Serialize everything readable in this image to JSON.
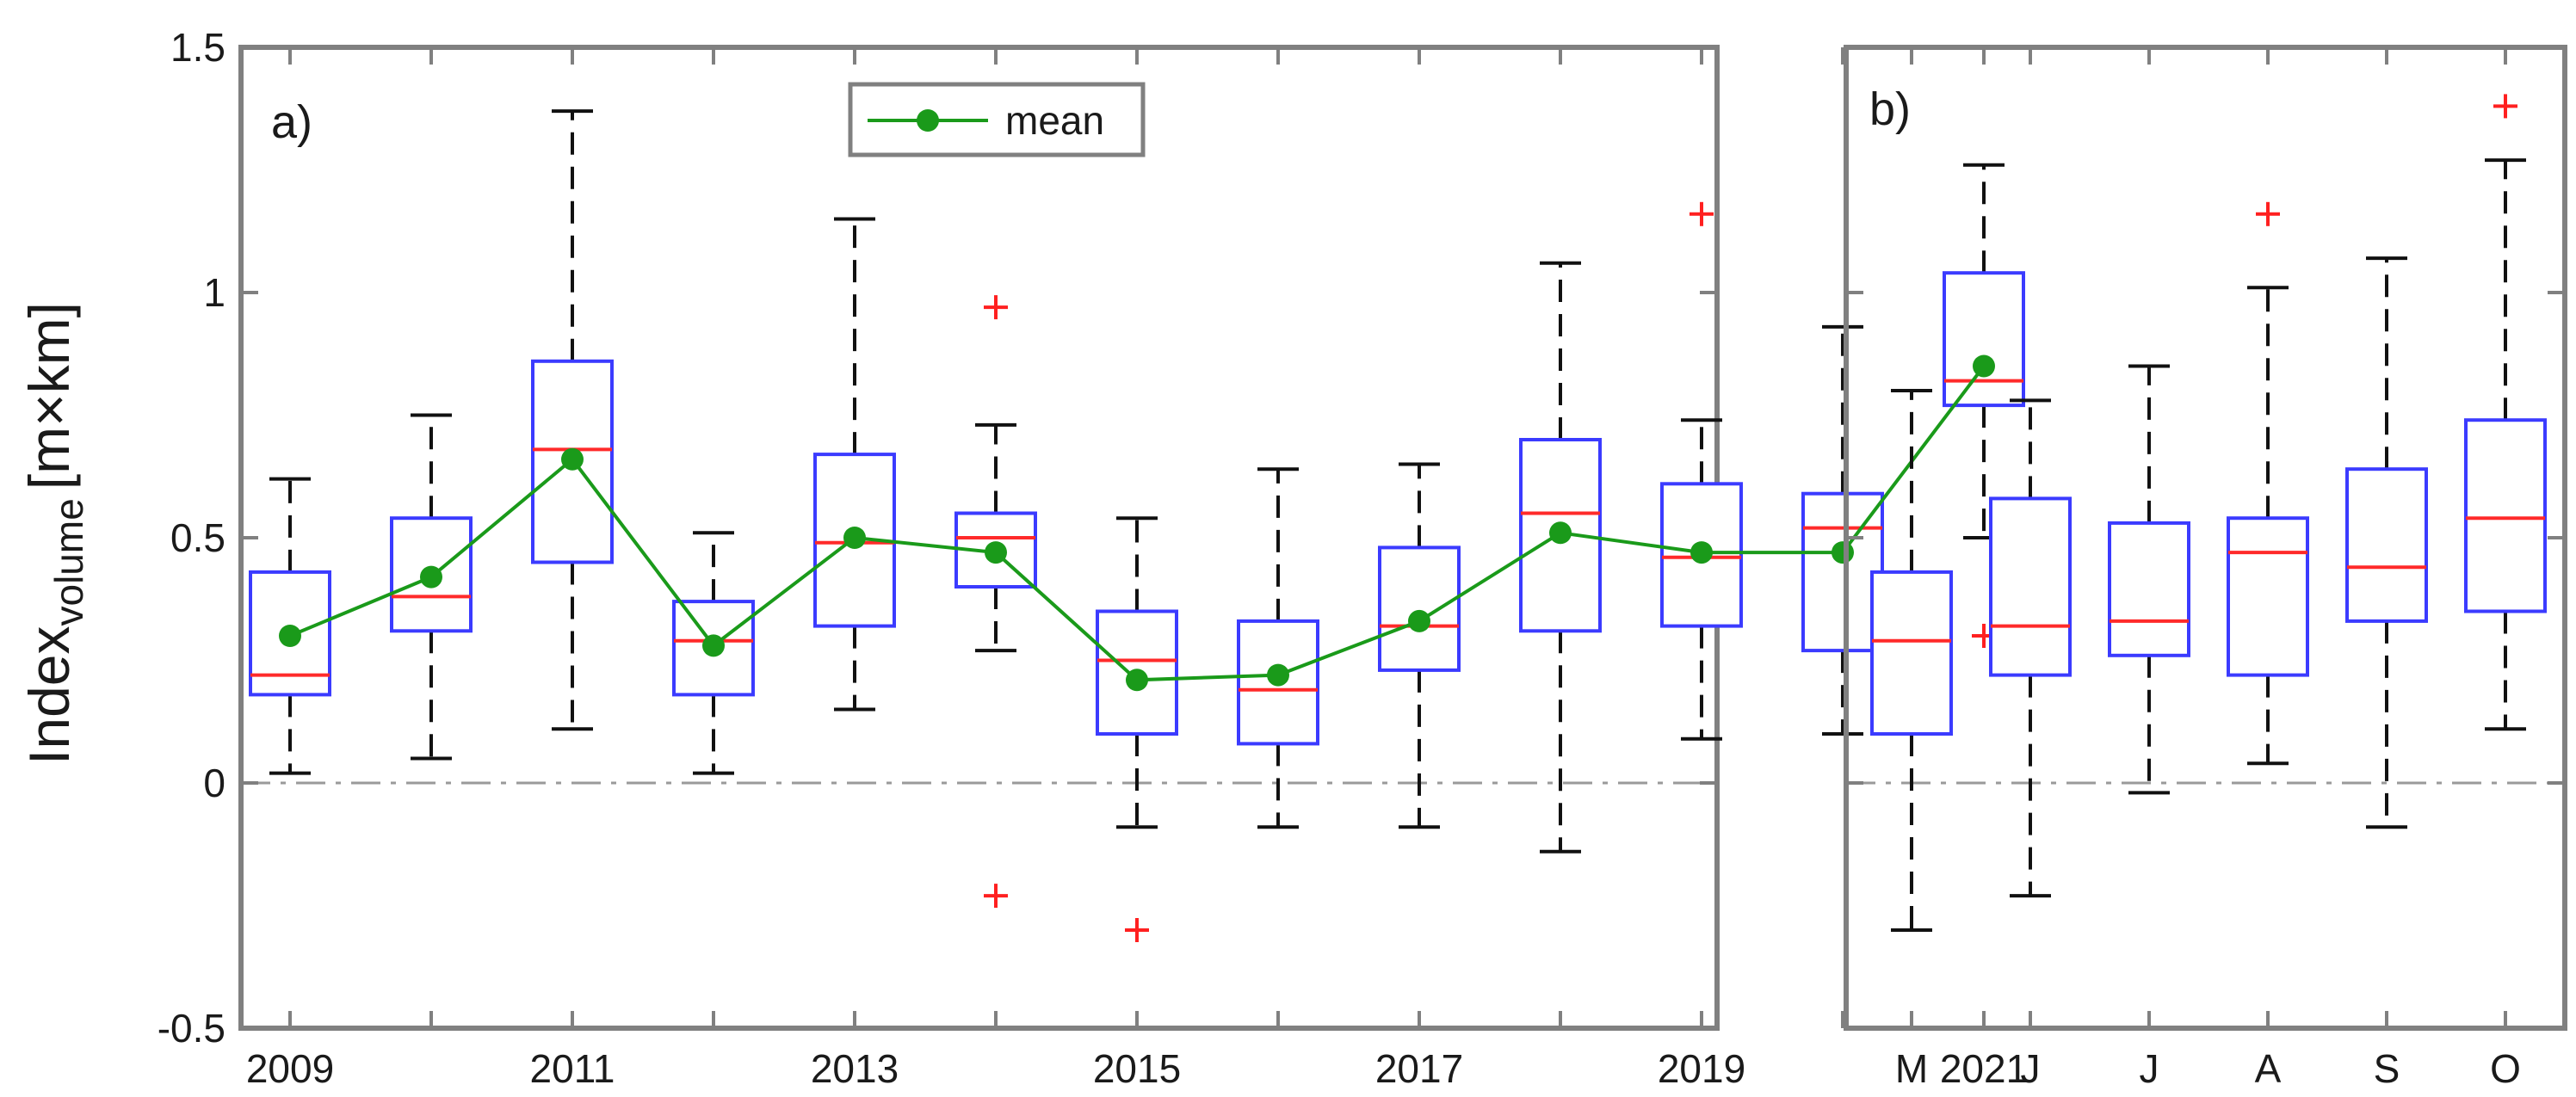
{
  "chart_data": [
    {
      "type": "box",
      "panel_label": "a)",
      "ylabel": "Index",
      "ylabel_subscript": "volume",
      "ylabel_unit": "[m×km]",
      "ylim": [
        -0.5,
        1.5
      ],
      "yticks": [
        -0.5,
        0,
        0.5,
        1,
        1.5
      ],
      "ytick_labels": [
        "-0.5",
        "0",
        "0.5",
        "1",
        "1.5"
      ],
      "reference_line": 0,
      "categories": [
        "2009",
        "2010",
        "2011",
        "2012",
        "2013",
        "2014",
        "2015",
        "2016",
        "2017",
        "2018",
        "2019",
        "2020",
        "2021"
      ],
      "xtick_labels": [
        "2009",
        "",
        "2011",
        "",
        "2013",
        "",
        "2015",
        "",
        "2017",
        "",
        "2019",
        "",
        "2021"
      ],
      "boxes": [
        {
          "x": "2009",
          "whisker_low": 0.02,
          "q1": 0.18,
          "median": 0.22,
          "q3": 0.43,
          "whisker_high": 0.62
        },
        {
          "x": "2010",
          "whisker_low": 0.05,
          "q1": 0.31,
          "median": 0.38,
          "q3": 0.54,
          "whisker_high": 0.75
        },
        {
          "x": "2011",
          "whisker_low": 0.11,
          "q1": 0.45,
          "median": 0.68,
          "q3": 0.86,
          "whisker_high": 1.37
        },
        {
          "x": "2012",
          "whisker_low": 0.02,
          "q1": 0.18,
          "median": 0.29,
          "q3": 0.37,
          "whisker_high": 0.51
        },
        {
          "x": "2013",
          "whisker_low": 0.15,
          "q1": 0.32,
          "median": 0.49,
          "q3": 0.67,
          "whisker_high": 1.15
        },
        {
          "x": "2014",
          "whisker_low": 0.27,
          "q1": 0.4,
          "median": 0.5,
          "q3": 0.55,
          "whisker_high": 0.73
        },
        {
          "x": "2015",
          "whisker_low": -0.09,
          "q1": 0.1,
          "median": 0.25,
          "q3": 0.35,
          "whisker_high": 0.54
        },
        {
          "x": "2016",
          "whisker_low": -0.09,
          "q1": 0.08,
          "median": 0.19,
          "q3": 0.33,
          "whisker_high": 0.64
        },
        {
          "x": "2017",
          "whisker_low": -0.09,
          "q1": 0.23,
          "median": 0.32,
          "q3": 0.48,
          "whisker_high": 0.65
        },
        {
          "x": "2018",
          "whisker_low": -0.14,
          "q1": 0.31,
          "median": 0.55,
          "q3": 0.7,
          "whisker_high": 1.06
        },
        {
          "x": "2019",
          "whisker_low": 0.09,
          "q1": 0.32,
          "median": 0.46,
          "q3": 0.61,
          "whisker_high": 0.74
        },
        {
          "x": "2020",
          "whisker_low": 0.1,
          "q1": 0.27,
          "median": 0.52,
          "q3": 0.59,
          "whisker_high": 0.93
        },
        {
          "x": "2021",
          "whisker_low": 0.5,
          "q1": 0.77,
          "median": 0.82,
          "q3": 1.04,
          "whisker_high": 1.26
        }
      ],
      "outliers": [
        {
          "x": "2014",
          "y": 0.97
        },
        {
          "x": "2014",
          "y": -0.23
        },
        {
          "x": "2015",
          "y": -0.3
        },
        {
          "x": "2019",
          "y": 1.16
        },
        {
          "x": "2021",
          "y": 0.3
        }
      ],
      "series": [
        {
          "name": "mean",
          "values": [
            0.3,
            0.42,
            0.66,
            0.28,
            0.5,
            0.47,
            0.21,
            0.22,
            0.33,
            0.51,
            0.47,
            0.47,
            0.85
          ]
        }
      ],
      "legend_position": "top-center",
      "grid": false,
      "colors": {
        "box": "#3b3bff",
        "median": "#ff2a2a",
        "whisker": "#111111",
        "outlier": "#ff2020",
        "mean": "#1a9a1a",
        "reference": "#9a9a9a",
        "axes": "#808080"
      }
    },
    {
      "type": "box",
      "panel_label": "b)",
      "ylim": [
        -0.5,
        1.5
      ],
      "reference_line": 0,
      "categories": [
        "M",
        "J",
        "J",
        "A",
        "S",
        "O"
      ],
      "boxes": [
        {
          "x": "M",
          "whisker_low": -0.3,
          "q1": 0.1,
          "median": 0.29,
          "q3": 0.43,
          "whisker_high": 0.8
        },
        {
          "x": "J",
          "whisker_low": -0.23,
          "q1": 0.22,
          "median": 0.32,
          "q3": 0.58,
          "whisker_high": 0.78
        },
        {
          "x": "J",
          "whisker_low": -0.02,
          "q1": 0.26,
          "median": 0.33,
          "q3": 0.53,
          "whisker_high": 0.85
        },
        {
          "x": "A",
          "whisker_low": 0.04,
          "q1": 0.22,
          "median": 0.47,
          "q3": 0.54,
          "whisker_high": 1.01
        },
        {
          "x": "S",
          "whisker_low": -0.09,
          "q1": 0.33,
          "median": 0.44,
          "q3": 0.64,
          "whisker_high": 1.07
        },
        {
          "x": "O",
          "whisker_low": 0.11,
          "q1": 0.35,
          "median": 0.54,
          "q3": 0.74,
          "whisker_high": 1.27
        }
      ],
      "outliers": [
        {
          "x": "A",
          "y": 1.16
        },
        {
          "x": "O",
          "y": 1.38
        }
      ],
      "grid": false
    }
  ]
}
